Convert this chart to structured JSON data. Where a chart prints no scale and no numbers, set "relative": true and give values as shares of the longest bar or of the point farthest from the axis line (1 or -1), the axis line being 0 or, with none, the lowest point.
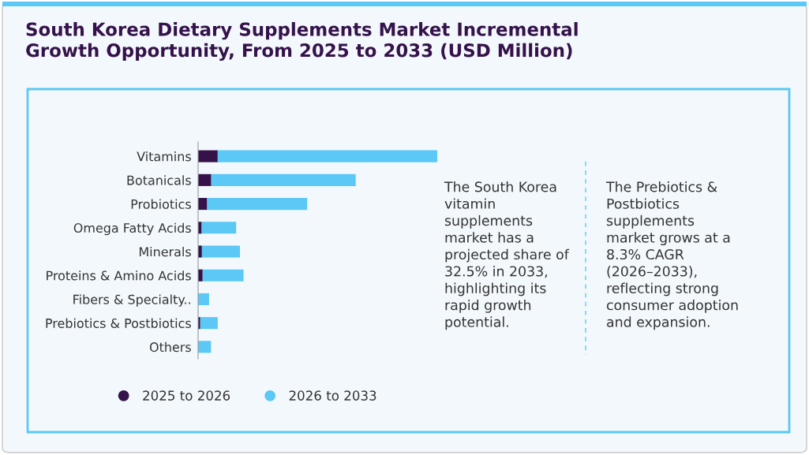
{
  "chart_data": {
    "type": "bar",
    "orientation": "horizontal",
    "stacked": true,
    "relative": true,
    "title": "South Korea Dietary Supplements Market Incremental\nGrowth Opportunity, From 2025 to 2033 (USD Million)",
    "categories": [
      "Vitamins",
      "Botanicals",
      "Probiotics",
      "Omega Fatty Acids",
      "Minerals",
      "Proteins & Amino Acids",
      "Fibers & Specialty..",
      "Prebiotics & Postbiotics",
      "Others"
    ],
    "series": [
      {
        "name": "2025 to 2026",
        "color": "#35124a",
        "values": [
          0.082,
          0.055,
          0.038,
          0.015,
          0.016,
          0.019,
          0,
          0.009,
          0
        ]
      },
      {
        "name": "2026 to 2033",
        "color": "#5bc8f5",
        "values": [
          0.918,
          0.604,
          0.418,
          0.144,
          0.159,
          0.171,
          0.046,
          0.073,
          0.054
        ]
      }
    ],
    "legend": "bottom",
    "annotations": [
      "The South Korea\nvitamin\nsupplements\nmarket has a\nprojected share of\n32.5% in 2033,\nhighlighting its\nrapid growth\npotential.",
      "The Prebiotics &\nPostbiotics\nsupplements\nmarket grows at a\n8.3% CAGR\n(2026–2033),\nreflecting strong\nconsumer adoption\nand expansion."
    ]
  }
}
